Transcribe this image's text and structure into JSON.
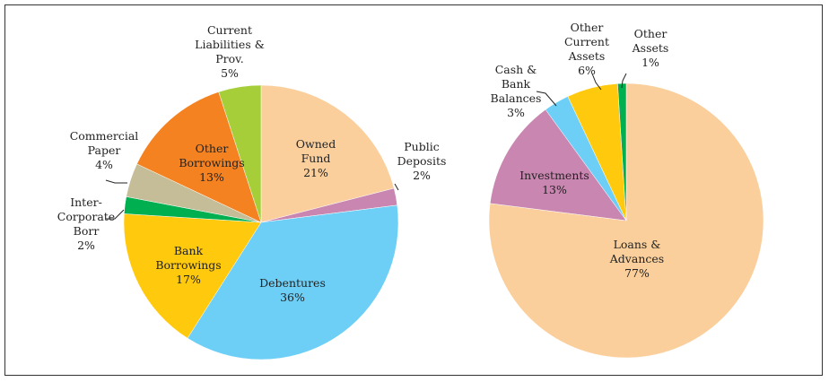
{
  "chart_data": [
    {
      "type": "pie",
      "title": "",
      "start": "top, clockwise",
      "slices": [
        {
          "label": [
            "Owned",
            "Fund"
          ],
          "value": 21,
          "pct": "21%",
          "color": "#FBCF9B"
        },
        {
          "label": [
            "Public",
            "Deposits"
          ],
          "value": 2,
          "pct": "2%",
          "color": "#C986B0"
        },
        {
          "label": [
            "Debentures"
          ],
          "value": 36,
          "pct": "36%",
          "color": "#6DCFF6"
        },
        {
          "label": [
            "Bank",
            "Borrowings"
          ],
          "value": 17,
          "pct": "17%",
          "color": "#FFC90E"
        },
        {
          "label": [
            "Inter-",
            "Corporate",
            "Borr"
          ],
          "value": 2,
          "pct": "2%",
          "color": "#00B050"
        },
        {
          "label": [
            "Commercial",
            "Paper"
          ],
          "value": 4,
          "pct": "4%",
          "color": "#C4BD97"
        },
        {
          "label": [
            "Other",
            "Borrowings"
          ],
          "value": 13,
          "pct": "13%",
          "color": "#F58220"
        },
        {
          "label": [
            "Current",
            "Liabilities &",
            "Prov."
          ],
          "value": 5,
          "pct": "5%",
          "color": "#A6CE39"
        }
      ]
    },
    {
      "type": "pie",
      "title": "",
      "start": "top, clockwise",
      "slices": [
        {
          "label": [
            "Loans &",
            "Advances"
          ],
          "value": 77,
          "pct": "77%",
          "color": "#FBCF9B"
        },
        {
          "label": [
            "Investments"
          ],
          "value": 13,
          "pct": "13%",
          "color": "#C986B0"
        },
        {
          "label": [
            "Cash &",
            "Bank",
            "Balances"
          ],
          "value": 3,
          "pct": "3%",
          "color": "#6DCFF6"
        },
        {
          "label": [
            "Other",
            "Current",
            "Assets"
          ],
          "value": 6,
          "pct": "6%",
          "color": "#FFC90E"
        },
        {
          "label": [
            "Other",
            "Assets"
          ],
          "value": 1,
          "pct": "1%",
          "color": "#00B050"
        }
      ]
    }
  ]
}
